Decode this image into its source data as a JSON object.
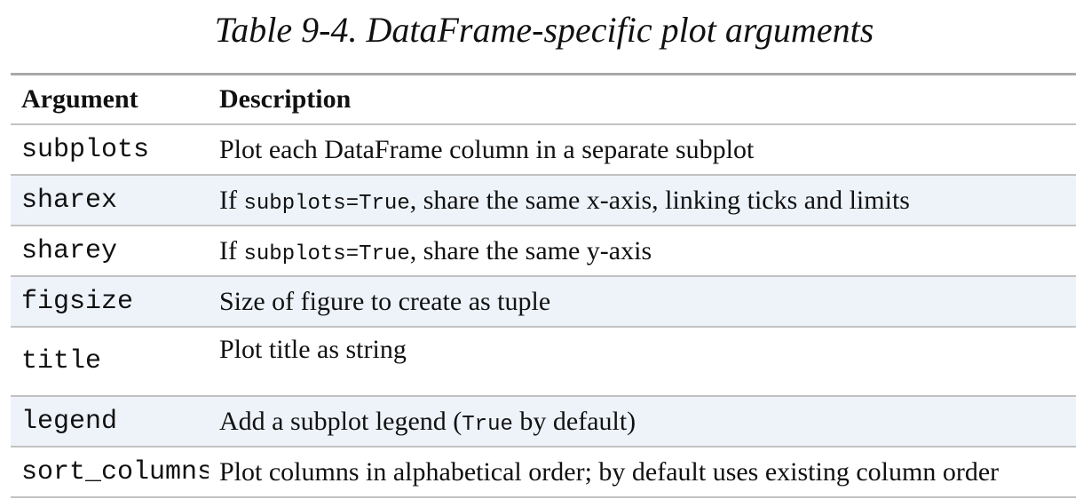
{
  "caption": "Table 9-4. DataFrame-specific plot arguments",
  "table": {
    "headers": [
      "Argument",
      "Description"
    ],
    "rows": [
      {
        "arg": "subplots",
        "desc": "Plot each DataFrame column in a separate subplot"
      },
      {
        "arg": "sharex",
        "desc_prefix": "If ",
        "desc_code": "subplots=True",
        "desc_suffix": ", share the same x-axis, linking ticks and limits"
      },
      {
        "arg": "sharey",
        "desc_prefix": "If ",
        "desc_code": "subplots=True",
        "desc_suffix": ", share the same y-axis"
      },
      {
        "arg": "figsize",
        "desc": "Size of figure to create as tuple"
      },
      {
        "arg": "title",
        "desc": "Plot title as string"
      },
      {
        "arg": "legend",
        "desc_prefix": "Add a subplot legend (",
        "desc_code": "True",
        "desc_suffix": " by default)"
      },
      {
        "arg": "sort_columns",
        "desc": "Plot columns in alphabetical order; by default uses existing column order"
      }
    ]
  },
  "colors": {
    "alt_row": "#eef3fa",
    "rule": "#c2c2c2",
    "header_rule": "#a8a8a8"
  }
}
